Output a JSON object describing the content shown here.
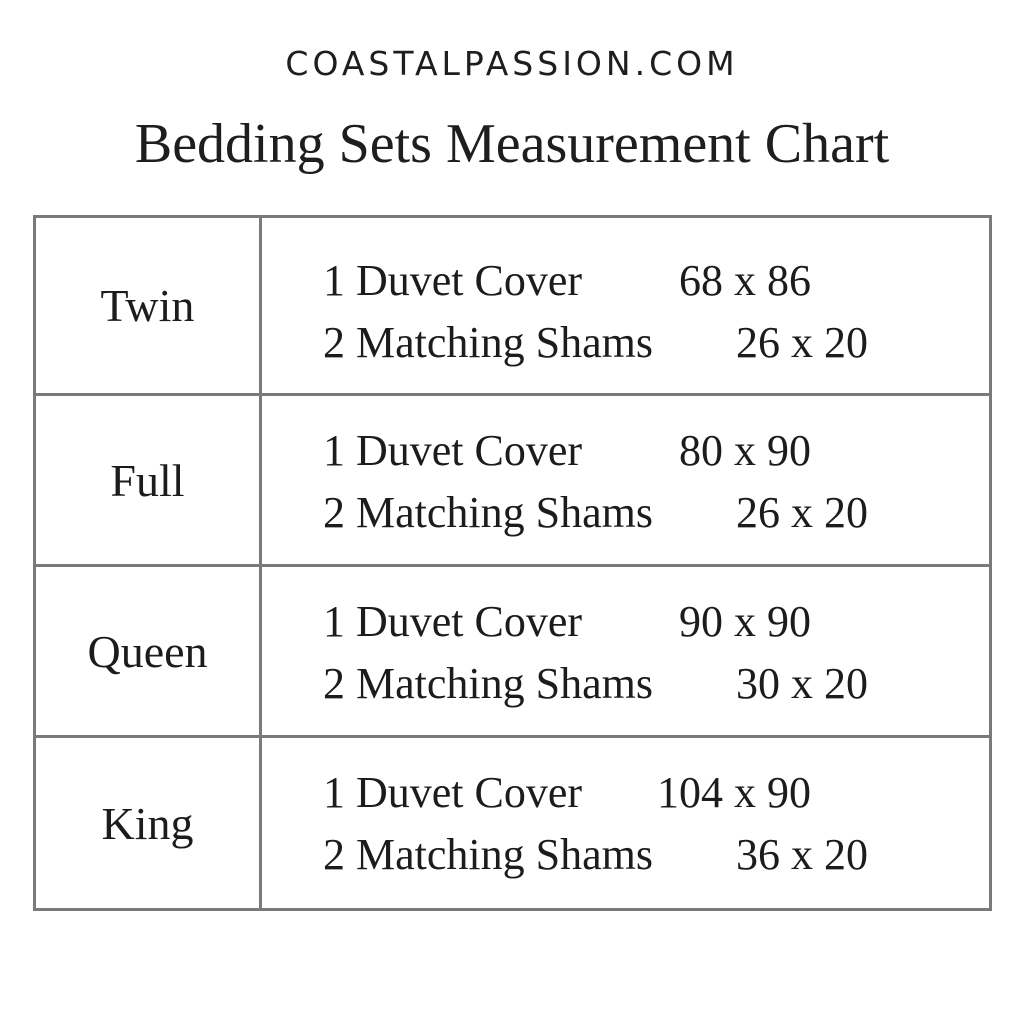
{
  "site": "COASTALPASSION.COM",
  "title": "Bedding Sets Measurement Chart",
  "rows": [
    {
      "size": "Twin",
      "duvet_label": "1 Duvet Cover",
      "duvet_dims": "68 x 86",
      "shams_label": "2 Matching Shams",
      "shams_dims": "26 x 20"
    },
    {
      "size": "Full",
      "duvet_label": "1 Duvet Cover",
      "duvet_dims": "80 x 90",
      "shams_label": "2 Matching Shams",
      "shams_dims": "26 x 20"
    },
    {
      "size": "Queen",
      "duvet_label": "1 Duvet Cover",
      "duvet_dims": "90 x 90",
      "shams_label": "2 Matching Shams",
      "shams_dims": "30 x 20"
    },
    {
      "size": "King",
      "duvet_label": "1 Duvet Cover",
      "duvet_dims": "104 x 90",
      "shams_label": "2 Matching Shams",
      "shams_dims": "36 x 20"
    }
  ],
  "colors": {
    "border": "#7a7a7a",
    "text": "#1c1c1c"
  }
}
